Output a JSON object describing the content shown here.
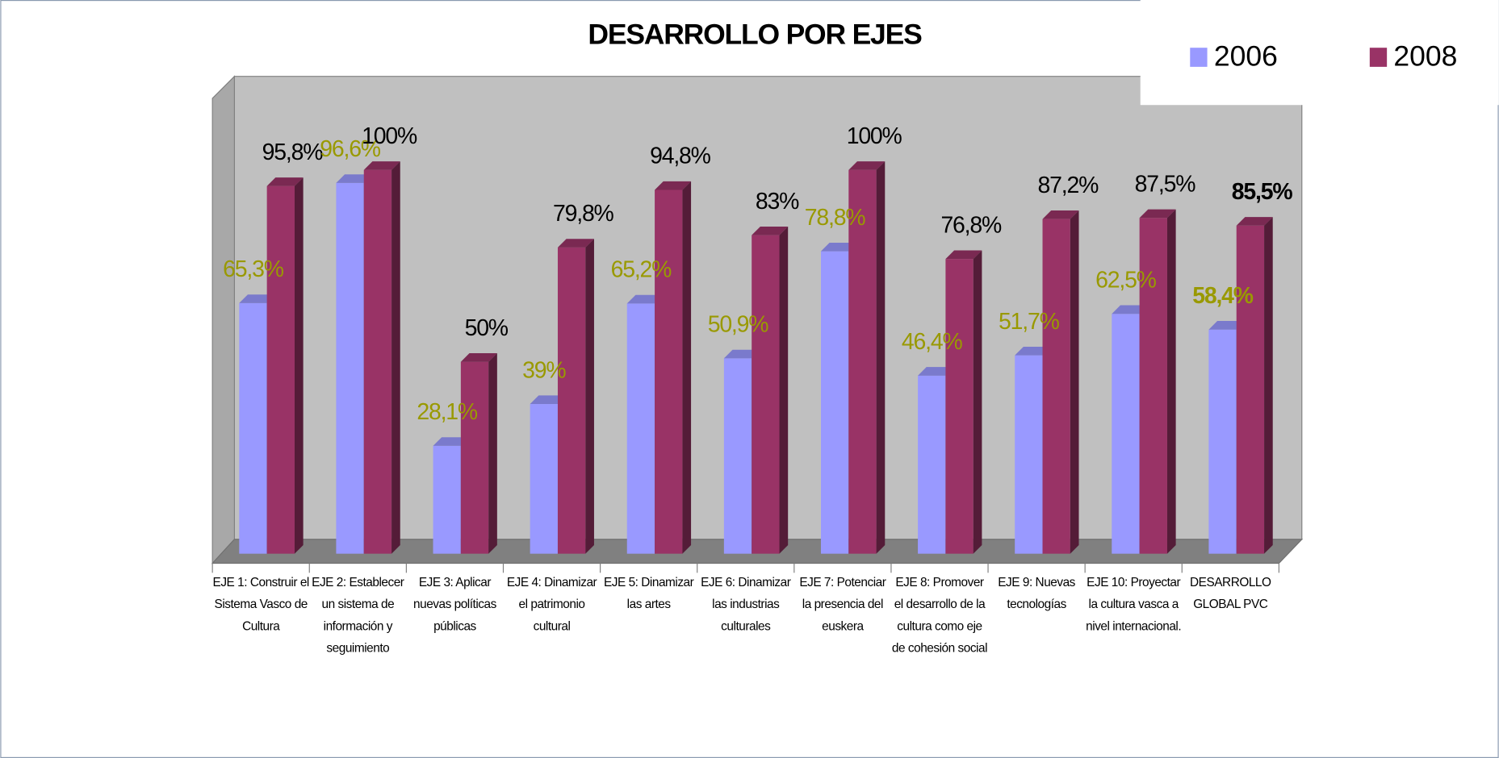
{
  "chart_data": {
    "type": "bar3d",
    "title": "DESARROLLO POR EJES",
    "categories": [
      "EJE 1: Construir el Sistema Vasco de Cultura",
      "EJE 2: Establecer un sistema de información y seguimiento",
      "EJE 3: Aplicar nuevas políticas públicas",
      "EJE 4: Dinamizar el patrimonio cultural",
      "EJE 5: Dinamizar las artes",
      "EJE 6: Dinamizar las industrias culturales",
      "EJE 7: Potenciar la presencia del euskera",
      "EJE 8: Promover el desarrollo de la cultura como eje de cohesión social",
      "EJE 9: Nuevas tecnologías",
      "EJE 10: Proyectar la cultura vasca a nivel internacional.",
      "DESARROLLO GLOBAL PVC"
    ],
    "series": [
      {
        "name": "2006",
        "color": "#9999ff",
        "label_color": "#999900",
        "values": [
          65.3,
          96.6,
          28.1,
          39,
          65.2,
          50.9,
          78.8,
          46.4,
          51.7,
          62.5,
          58.4
        ],
        "value_labels": [
          "65,3%",
          "96,6%",
          "28,1%",
          "39%",
          "65,2%",
          "50,9%",
          "78,8%",
          "46,4%",
          "51,7%",
          "62,5%",
          "58,4%"
        ]
      },
      {
        "name": "2008",
        "color": "#993366",
        "label_color": "#000000",
        "values": [
          95.8,
          100,
          50,
          79.8,
          94.8,
          83,
          100,
          76.8,
          87.2,
          87.5,
          85.5
        ],
        "value_labels": [
          "95,8%",
          "100%",
          "50%",
          "79,8%",
          "94,8%",
          "83%",
          "100%",
          "76,8%",
          "87,2%",
          "87,5%",
          "85,5%"
        ]
      }
    ],
    "legend": "top-right"
  }
}
